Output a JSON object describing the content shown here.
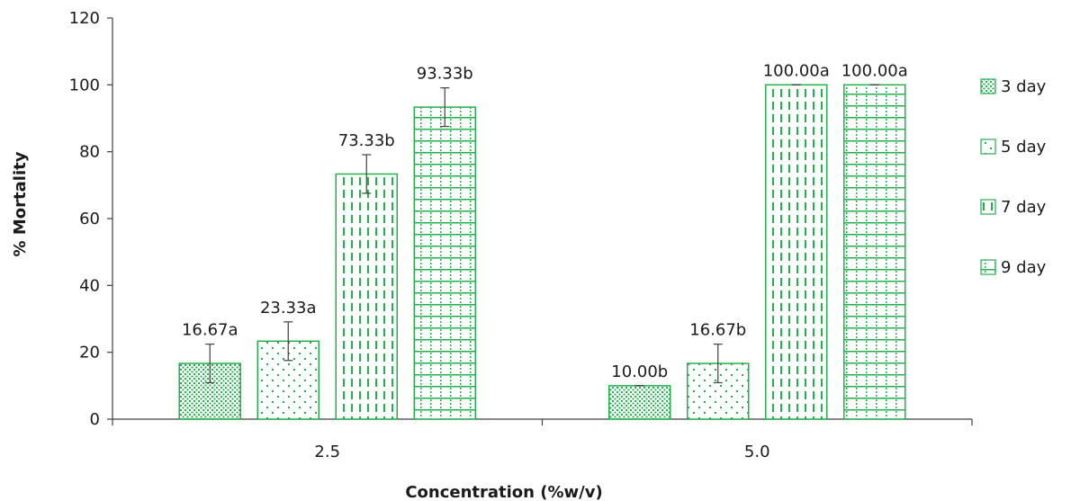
{
  "chart_data": {
    "type": "bar",
    "xlabel": "Concentration (%w/v)",
    "ylabel": "% Mortality",
    "categories": [
      "2.5",
      "5.0"
    ],
    "ylim": [
      0,
      120
    ],
    "yticks": [
      "0",
      "20",
      "40",
      "60",
      "80",
      "100",
      "120"
    ],
    "grid": false,
    "legend_position": "right",
    "series": [
      {
        "name": "3 day",
        "pattern": "dots-dense",
        "values": [
          16.67,
          10.0
        ],
        "errors": [
          5.77,
          0
        ],
        "labels": [
          "16.67a",
          "10.00b"
        ]
      },
      {
        "name": "5 day",
        "pattern": "dots-sparse",
        "values": [
          23.33,
          16.67
        ],
        "errors": [
          5.77,
          5.77
        ],
        "labels": [
          "23.33a",
          "16.67b"
        ]
      },
      {
        "name": "7 day",
        "pattern": "vertical-dashes",
        "values": [
          73.33,
          100.0
        ],
        "errors": [
          5.77,
          0
        ],
        "labels": [
          "73.33b",
          "100.00a"
        ]
      },
      {
        "name": "9 day",
        "pattern": "grid-dotted",
        "values": [
          93.33,
          100.0
        ],
        "errors": [
          5.77,
          0
        ],
        "labels": [
          "93.33b",
          "100.00a"
        ]
      }
    ],
    "colors": {
      "bar_stroke": "#22b14c",
      "bar_fill": "#ffffff",
      "axis": "#404040",
      "error_bar": "#404040"
    }
  }
}
